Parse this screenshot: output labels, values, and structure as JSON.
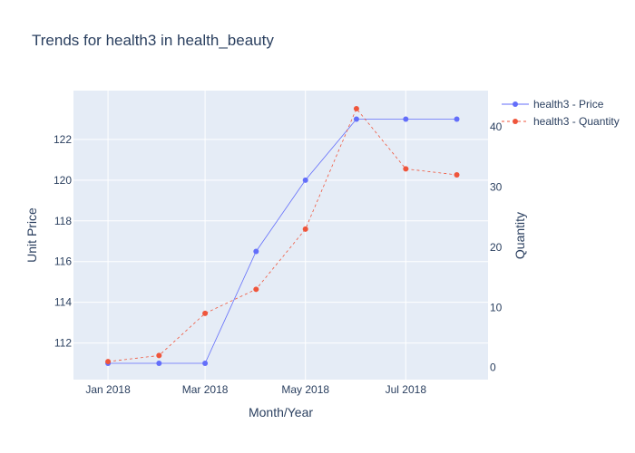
{
  "chart_data": {
    "type": "line",
    "title": "Trends for health3 in health_beauty",
    "xlabel": "Month/Year",
    "ylabel": "Unit Price",
    "y2label": "Quantity",
    "x": [
      "2018-01",
      "2018-02",
      "2018-03",
      "2018-04",
      "2018-05",
      "2018-06",
      "2018-07",
      "2018-08"
    ],
    "x_ticks": [
      {
        "value": "2018-01",
        "label": "Jan 2018"
      },
      {
        "value": "2018-03",
        "label": "Mar 2018"
      },
      {
        "value": "2018-05",
        "label": "May 2018"
      },
      {
        "value": "2018-07",
        "label": "Jul 2018"
      }
    ],
    "xlim": [
      "2017-12-11",
      "2018-08-20"
    ],
    "ylim": [
      110.2,
      124.4
    ],
    "y_ticks": [
      112,
      114,
      116,
      118,
      120,
      122
    ],
    "y2lim": [
      -2,
      46
    ],
    "y2_ticks": [
      0,
      10,
      20,
      30,
      40
    ],
    "y2_tick_labels": [
      "0",
      "10",
      "20",
      "30",
      "40"
    ],
    "grid": true,
    "legend_position": "top-right",
    "series": [
      {
        "name": "health3 - Price",
        "axis": "y",
        "color": "#636efa",
        "dash": "solid",
        "values": [
          111,
          111,
          111,
          116.5,
          120,
          123,
          123,
          123
        ]
      },
      {
        "name": "health3 - Quantity",
        "axis": "y2",
        "color": "#ef553b",
        "dash": "dash",
        "values": [
          1,
          2,
          9,
          13,
          23,
          43,
          33,
          32
        ]
      }
    ]
  },
  "colors": {
    "plot_bg": "#e5ecf6",
    "grid": "#ffffff",
    "text": "#2a3f5f"
  }
}
